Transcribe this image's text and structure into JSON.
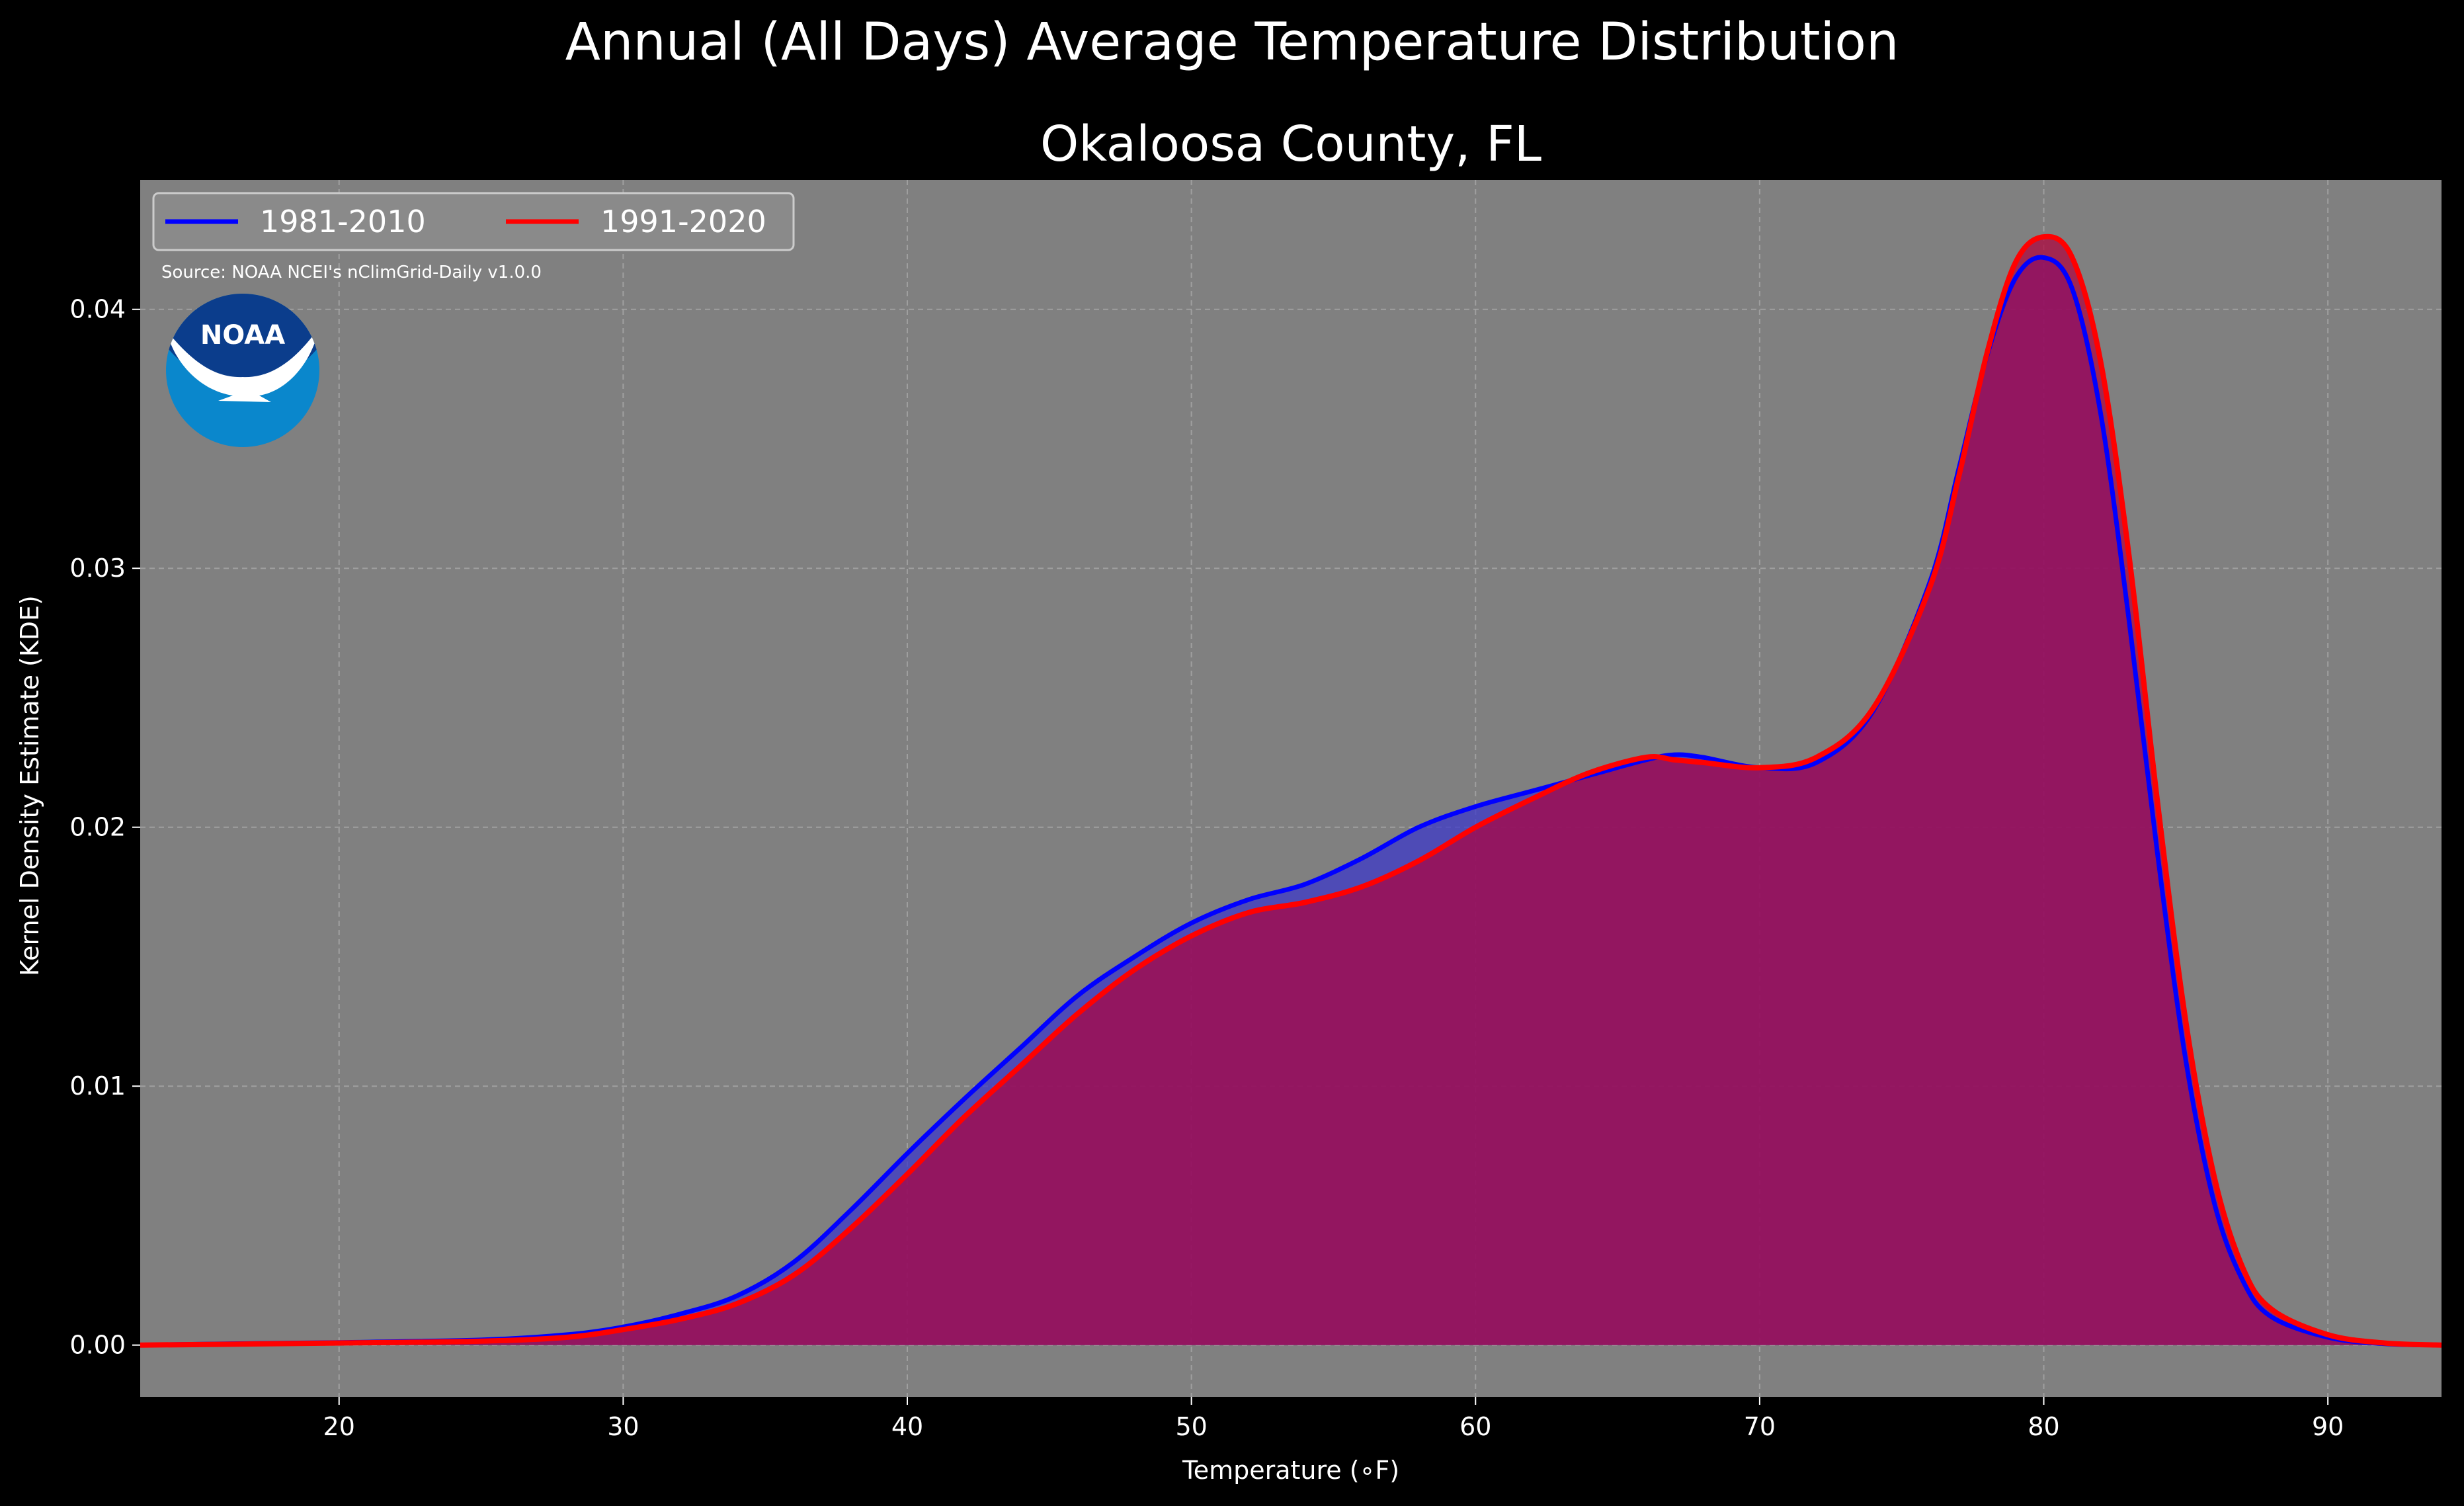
{
  "chart_data": {
    "type": "area",
    "title": "Annual (All Days) Average Temperature Distribution",
    "subtitle": "Okaloosa County, FL",
    "xlabel": "Temperature (∘F)",
    "ylabel": "Kernel Density Estimate (KDE)",
    "xlim": [
      13,
      94
    ],
    "ylim": [
      -0.002,
      0.045
    ],
    "xticks": [
      20,
      30,
      40,
      50,
      60,
      70,
      80,
      90
    ],
    "xtick_labels": [
      "20",
      "30",
      "40",
      "50",
      "60",
      "70",
      "80",
      "90"
    ],
    "yticks": [
      0.0,
      0.01,
      0.02,
      0.03,
      0.04
    ],
    "ytick_labels": [
      "0.00",
      "0.01",
      "0.02",
      "0.03",
      "0.04"
    ],
    "grid": true,
    "legend": "top-left",
    "source": "Source: NOAA NCEI's nClimGrid-Daily v1.0.0",
    "logo_text": "NOAA",
    "colors": {
      "figure_bg": "#000000",
      "axes_bg": "#808080",
      "grid": "#b4b4b4",
      "fill_overlap": "#9e1e5c",
      "logo_outer": "#0a87cc",
      "logo_top": "#0b3d8c"
    },
    "series": [
      {
        "name": "1981-2010",
        "color": "#0000ff",
        "fill": "#3e3ac8",
        "x": [
          13,
          16,
          20,
          25,
          28,
          30,
          32,
          34,
          36,
          38,
          40,
          42,
          44,
          46,
          48,
          50,
          52,
          54,
          56,
          58,
          60,
          62,
          64,
          66,
          67,
          68,
          70,
          72,
          74,
          76,
          77,
          78,
          79,
          80,
          81,
          82,
          83,
          84,
          85,
          86,
          87,
          88,
          90,
          92,
          94
        ],
        "y": [
          0.0,
          5e-05,
          0.0001,
          0.0002,
          0.0004,
          0.0007,
          0.0012,
          0.0019,
          0.0032,
          0.0052,
          0.0074,
          0.0095,
          0.0115,
          0.0135,
          0.015,
          0.0163,
          0.0172,
          0.0178,
          0.0188,
          0.02,
          0.0208,
          0.0214,
          0.022,
          0.0226,
          0.0228,
          0.0227,
          0.0223,
          0.0225,
          0.0245,
          0.0295,
          0.0338,
          0.0382,
          0.0412,
          0.042,
          0.0408,
          0.036,
          0.028,
          0.019,
          0.011,
          0.0055,
          0.0025,
          0.0011,
          0.0003,
          5e-05,
          0.0
        ]
      },
      {
        "name": "1991-2020",
        "color": "#ff0000",
        "fill": "#b0003c",
        "x": [
          13,
          16,
          20,
          25,
          28,
          30,
          32,
          34,
          36,
          38,
          40,
          42,
          44,
          46,
          48,
          50,
          52,
          54,
          56,
          58,
          60,
          62,
          64,
          66,
          67,
          68,
          70,
          72,
          74,
          76,
          77,
          78,
          79,
          80,
          81,
          82,
          83,
          84,
          85,
          86,
          87,
          88,
          90,
          92,
          94
        ],
        "y": [
          0.0,
          3e-05,
          8e-05,
          0.00015,
          0.0003,
          0.0006,
          0.001,
          0.0016,
          0.0027,
          0.0045,
          0.0066,
          0.0088,
          0.0108,
          0.0128,
          0.0145,
          0.0158,
          0.0167,
          0.0171,
          0.0177,
          0.0187,
          0.02,
          0.0211,
          0.0221,
          0.0227,
          0.0226,
          0.0225,
          0.0223,
          0.0227,
          0.0246,
          0.0293,
          0.0335,
          0.0383,
          0.0418,
          0.0428,
          0.042,
          0.038,
          0.0305,
          0.021,
          0.0125,
          0.0065,
          0.003,
          0.0014,
          0.0004,
          8e-05,
          0.0
        ]
      }
    ]
  }
}
